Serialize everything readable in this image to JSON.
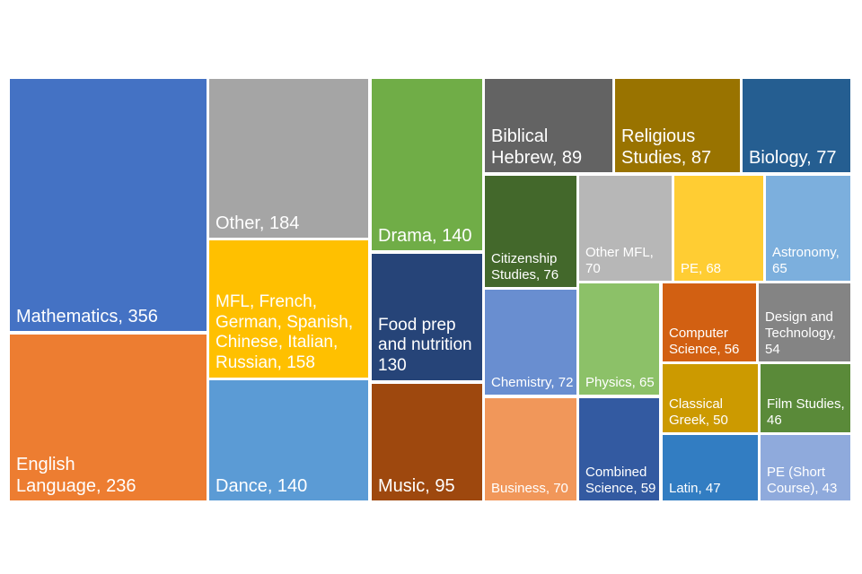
{
  "chart_data": {
    "type": "treemap",
    "title": "",
    "items": [
      {
        "name": "Mathematics",
        "value": 356,
        "label": "Mathematics, 356",
        "color": "#4472C4"
      },
      {
        "name": "English Language",
        "value": 236,
        "label": "English Language, 236",
        "color": "#ED7D31"
      },
      {
        "name": "Other",
        "value": 184,
        "label": "Other, 184",
        "color": "#A5A5A5"
      },
      {
        "name": "MFL, French, German, Spanish, Chinese, Italian, Russian",
        "value": 158,
        "label": "MFL, French, German, Spanish, Chinese, Italian, Russian, 158",
        "color": "#FFC000"
      },
      {
        "name": "Dance",
        "value": 140,
        "label": "Dance, 140",
        "color": "#5B9BD5"
      },
      {
        "name": "Drama",
        "value": 140,
        "label": "Drama, 140",
        "color": "#70AD47"
      },
      {
        "name": "Food prep and nutrition",
        "value": 130,
        "label": "Food prep and nutrition 130",
        "color": "#264478"
      },
      {
        "name": "Music",
        "value": 95,
        "label": "Music, 95",
        "color": "#9E480E"
      },
      {
        "name": "Biblical Hebrew",
        "value": 89,
        "label": "Biblical Hebrew, 89",
        "color": "#636363"
      },
      {
        "name": "Religious Studies",
        "value": 87,
        "label": "Religious Studies, 87",
        "color": "#997300"
      },
      {
        "name": "Biology",
        "value": 77,
        "label": "Biology, 77",
        "color": "#255E91"
      },
      {
        "name": "Citizenship Studies",
        "value": 76,
        "label": "Citizenship Studies, 76",
        "color": "#43682B"
      },
      {
        "name": "Other MFL",
        "value": 70,
        "label": "Other MFL, 70",
        "color": "#B7B7B7"
      },
      {
        "name": "PE",
        "value": 68,
        "label": "PE, 68",
        "color": "#FFCD33"
      },
      {
        "name": "Astronomy",
        "value": 65,
        "label": "Astronomy, 65",
        "color": "#7CAFDD"
      },
      {
        "name": "Chemistry",
        "value": 72,
        "label": "Chemistry, 72",
        "color": "#698ED0"
      },
      {
        "name": "Physics",
        "value": 65,
        "label": "Physics, 65",
        "color": "#8CC168"
      },
      {
        "name": "Computer Science",
        "value": 56,
        "label": "Computer Science, 56",
        "color": "#D26012"
      },
      {
        "name": "Design and Technology",
        "value": 54,
        "label": "Design and Technology, 54",
        "color": "#848484"
      },
      {
        "name": "Classical Greek",
        "value": 50,
        "label": "Classical Greek, 50",
        "color": "#CC9A00"
      },
      {
        "name": "Film Studies",
        "value": 46,
        "label": "Film Studies, 46",
        "color": "#5A8A39"
      },
      {
        "name": "Business",
        "value": 70,
        "label": "Business, 70",
        "color": "#F1975A"
      },
      {
        "name": "Combined Science",
        "value": 59,
        "label": "Combined Science, 59",
        "color": "#335AA1"
      },
      {
        "name": "Latin",
        "value": 47,
        "label": "Latin, 47",
        "color": "#327DC2"
      },
      {
        "name": "PE (Short Course)",
        "value": 43,
        "label": "PE (Short Course), 43",
        "color": "#8FAADC"
      }
    ]
  }
}
